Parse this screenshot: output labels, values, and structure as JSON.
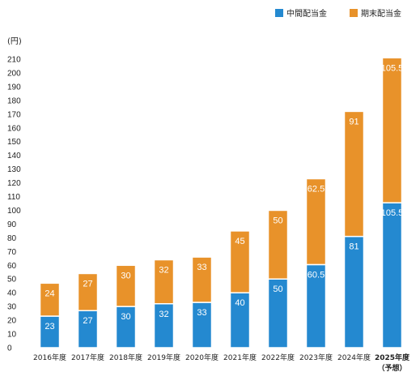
{
  "chart_data": {
    "type": "bar",
    "stacked": true,
    "y_unit": "(円)",
    "categories": [
      "2016年度",
      "2017年度",
      "2018年度",
      "2019年度",
      "2020年度",
      "2021年度",
      "2022年度",
      "2023年度",
      "2024年度",
      "2025年度"
    ],
    "category_notes": [
      "",
      "",
      "",
      "",
      "",
      "",
      "",
      "",
      "",
      "（予想）"
    ],
    "series": [
      {
        "name": "中間配当金",
        "color": "#2489d0",
        "values": [
          23,
          27,
          30,
          32,
          33,
          40,
          50,
          60.5,
          81,
          105.5
        ]
      },
      {
        "name": "期末配当金",
        "color": "#e8922a",
        "values": [
          24,
          27,
          30,
          32,
          33,
          45,
          50,
          62.5,
          91,
          105.5
        ]
      }
    ],
    "data_labels": [
      [
        "23",
        "27",
        "30",
        "32",
        "33",
        "40",
        "50",
        "60.5",
        "81",
        "105.5"
      ],
      [
        "24",
        "27",
        "30",
        "32",
        "33",
        "45",
        "50",
        "62.5",
        "91",
        "105.5"
      ]
    ],
    "ylim": [
      0,
      210
    ],
    "yticks": [
      0,
      10,
      20,
      30,
      40,
      50,
      60,
      70,
      80,
      90,
      100,
      110,
      120,
      130,
      140,
      150,
      160,
      170,
      180,
      190,
      200,
      210
    ],
    "grid": false,
    "legend_position": "top-right"
  }
}
